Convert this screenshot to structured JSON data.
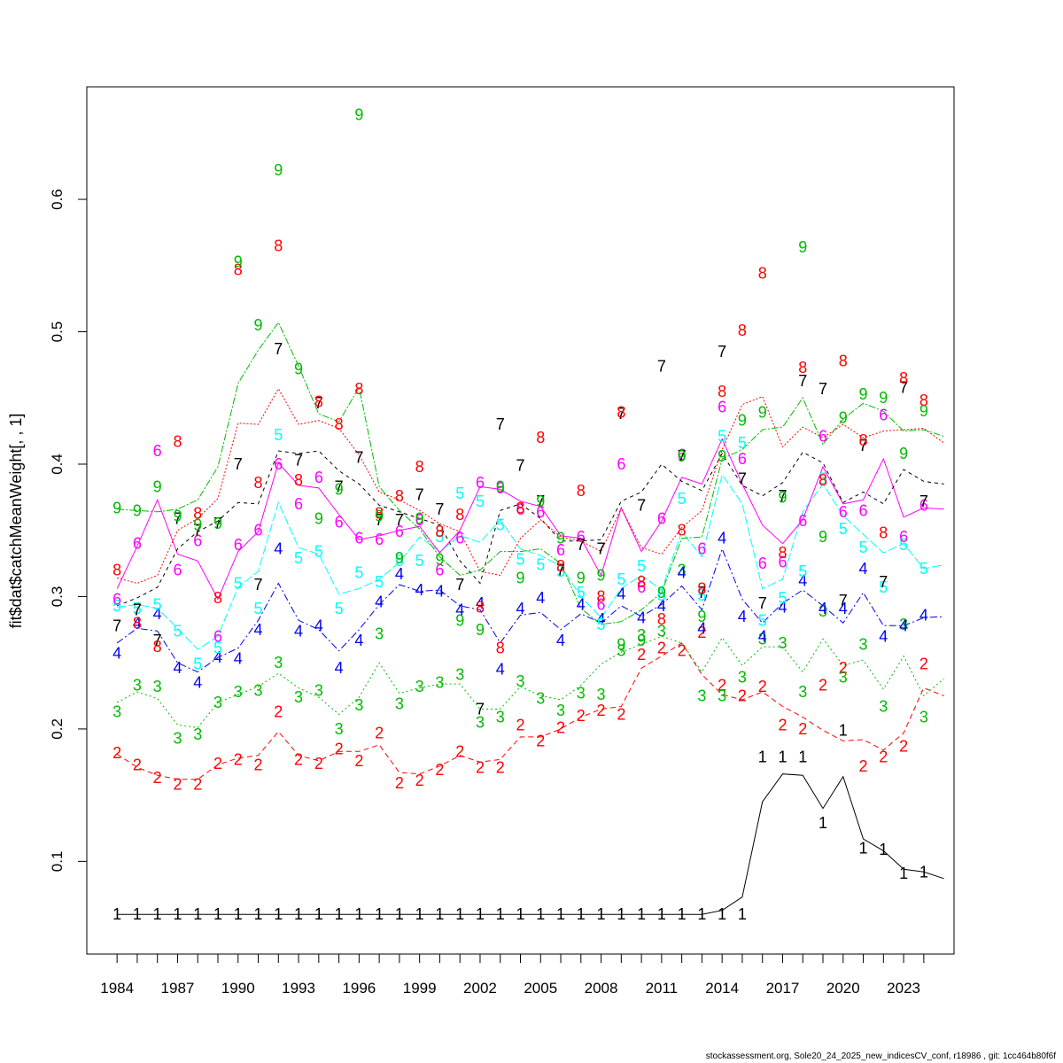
{
  "chart_data": {
    "type": "line",
    "title": "",
    "xlabel": "",
    "ylabel": "fit$dat$catchMeanWeight[, , 1]",
    "xlim": [
      1982.5,
      2025.5
    ],
    "ylim": [
      0.03,
      0.685
    ],
    "x_ticks": [
      1984,
      1987,
      1990,
      1993,
      1996,
      1999,
      2002,
      2005,
      2008,
      2011,
      2014,
      2017,
      2020,
      2023
    ],
    "y_ticks": [
      0.1,
      0.2,
      0.3,
      0.4,
      0.5,
      0.6
    ],
    "grid": false,
    "legend": "none",
    "x": [
      1984,
      1985,
      1986,
      1987,
      1988,
      1989,
      1990,
      1991,
      1992,
      1993,
      1994,
      1995,
      1996,
      1997,
      1998,
      1999,
      2000,
      2001,
      2002,
      2003,
      2004,
      2005,
      2006,
      2007,
      2008,
      2009,
      2010,
      2011,
      2012,
      2013,
      2014,
      2015,
      2016,
      2017,
      2018,
      2019,
      2020,
      2021,
      2022,
      2023,
      2024
    ],
    "fit_x": [
      1984,
      1985,
      1986,
      1987,
      1988,
      1989,
      1990,
      1991,
      1992,
      1993,
      1994,
      1995,
      1996,
      1997,
      1998,
      1999,
      2000,
      2001,
      2002,
      2003,
      2004,
      2005,
      2006,
      2007,
      2008,
      2009,
      2010,
      2011,
      2012,
      2013,
      2014,
      2015,
      2016,
      2017,
      2018,
      2019,
      2020,
      2021,
      2022,
      2023,
      2024,
      2025
    ],
    "series": [
      {
        "label": "1",
        "color": "#000000",
        "dash": "",
        "values": [
          0.06,
          0.06,
          0.06,
          0.06,
          0.06,
          0.06,
          0.06,
          0.06,
          0.06,
          0.06,
          0.06,
          0.06,
          0.06,
          0.06,
          0.06,
          0.06,
          0.06,
          0.06,
          0.06,
          0.06,
          0.06,
          0.06,
          0.06,
          0.06,
          0.06,
          0.06,
          0.06,
          0.06,
          0.06,
          0.06,
          0.06,
          0.06,
          0.179,
          0.179,
          0.179,
          0.129,
          0.199,
          0.11,
          0.109,
          0.091,
          0.092
        ],
        "fit": [
          0.06,
          0.06,
          0.06,
          0.06,
          0.06,
          0.06,
          0.06,
          0.06,
          0.06,
          0.06,
          0.06,
          0.06,
          0.06,
          0.06,
          0.06,
          0.06,
          0.06,
          0.06,
          0.06,
          0.06,
          0.06,
          0.06,
          0.06,
          0.06,
          0.06,
          0.06,
          0.06,
          0.06,
          0.06,
          0.06,
          0.063,
          0.073,
          0.145,
          0.166,
          0.165,
          0.14,
          0.164,
          0.117,
          0.108,
          0.094,
          0.092,
          0.087
        ]
      },
      {
        "label": "2",
        "color": "#ff0000",
        "dash": "6,4",
        "values": [
          0.182,
          0.173,
          0.163,
          0.158,
          0.158,
          0.174,
          0.177,
          0.173,
          0.213,
          0.177,
          0.174,
          0.185,
          0.176,
          0.197,
          0.159,
          0.161,
          0.169,
          0.183,
          0.171,
          0.171,
          0.203,
          0.191,
          0.201,
          0.21,
          0.214,
          0.211,
          0.256,
          0.261,
          0.259,
          0.273,
          0.233,
          0.225,
          0.232,
          0.203,
          0.2,
          0.233,
          0.246,
          0.172,
          0.179,
          0.187,
          0.249
        ],
        "fit": [
          0.181,
          0.171,
          0.165,
          0.162,
          0.162,
          0.173,
          0.178,
          0.18,
          0.198,
          0.18,
          0.176,
          0.183,
          0.183,
          0.188,
          0.167,
          0.166,
          0.172,
          0.18,
          0.175,
          0.177,
          0.194,
          0.194,
          0.2,
          0.209,
          0.215,
          0.217,
          0.246,
          0.255,
          0.265,
          0.241,
          0.226,
          0.222,
          0.228,
          0.217,
          0.209,
          0.199,
          0.191,
          0.192,
          0.184,
          0.197,
          0.231,
          0.225
        ]
      },
      {
        "label": "3",
        "color": "#00bb00",
        "dash": "2,3",
        "values": [
          0.213,
          0.233,
          0.232,
          0.193,
          0.196,
          0.22,
          0.228,
          0.229,
          0.25,
          0.224,
          0.229,
          0.2,
          0.218,
          0.272,
          0.219,
          0.232,
          0.235,
          0.241,
          0.205,
          0.209,
          0.236,
          0.223,
          0.214,
          0.227,
          0.226,
          0.259,
          0.271,
          0.274,
          0.32,
          0.225,
          0.225,
          0.239,
          0.268,
          0.265,
          0.228,
          0.289,
          0.239,
          0.264,
          0.217,
          0.279,
          0.209
        ],
        "fit": [
          0.22,
          0.228,
          0.223,
          0.203,
          0.201,
          0.22,
          0.226,
          0.232,
          0.242,
          0.231,
          0.224,
          0.211,
          0.224,
          0.25,
          0.227,
          0.231,
          0.234,
          0.234,
          0.215,
          0.215,
          0.232,
          0.225,
          0.222,
          0.233,
          0.249,
          0.258,
          0.264,
          0.27,
          0.265,
          0.243,
          0.269,
          0.248,
          0.262,
          0.262,
          0.243,
          0.268,
          0.248,
          0.252,
          0.23,
          0.255,
          0.225,
          0.238
        ]
      },
      {
        "label": "4",
        "color": "#0000ee",
        "dash": "8,3,2,3",
        "values": [
          0.257,
          0.28,
          0.287,
          0.246,
          0.235,
          0.254,
          0.253,
          0.275,
          0.336,
          0.274,
          0.278,
          0.246,
          0.267,
          0.296,
          0.317,
          0.305,
          0.304,
          0.29,
          0.295,
          0.245,
          0.291,
          0.299,
          0.267,
          0.294,
          0.283,
          0.302,
          0.284,
          0.293,
          0.318,
          0.276,
          0.344,
          0.285,
          0.27,
          0.292,
          0.312,
          0.291,
          0.291,
          0.321,
          0.27,
          0.278,
          0.286
        ],
        "fit": [
          0.265,
          0.276,
          0.274,
          0.25,
          0.243,
          0.254,
          0.261,
          0.282,
          0.31,
          0.282,
          0.275,
          0.259,
          0.275,
          0.294,
          0.309,
          0.304,
          0.305,
          0.293,
          0.29,
          0.265,
          0.286,
          0.288,
          0.275,
          0.287,
          0.28,
          0.293,
          0.285,
          0.294,
          0.308,
          0.29,
          0.336,
          0.298,
          0.28,
          0.295,
          0.305,
          0.293,
          0.28,
          0.303,
          0.278,
          0.278,
          0.284,
          0.285
        ]
      },
      {
        "label": "5",
        "color": "#00ffff",
        "dash": "10,3",
        "values": [
          0.293,
          0.291,
          0.294,
          0.274,
          0.249,
          0.261,
          0.31,
          0.291,
          0.422,
          0.329,
          0.334,
          0.291,
          0.318,
          0.311,
          0.327,
          0.327,
          0.345,
          0.378,
          0.372,
          0.354,
          0.328,
          0.324,
          0.319,
          0.303,
          0.279,
          0.313,
          0.323,
          0.301,
          0.374,
          0.301,
          0.421,
          0.416,
          0.282,
          0.299,
          0.319,
          0.389,
          0.351,
          0.337,
          0.307,
          0.339,
          0.321
        ],
        "fit": [
          0.292,
          0.294,
          0.291,
          0.276,
          0.26,
          0.27,
          0.307,
          0.319,
          0.371,
          0.337,
          0.332,
          0.302,
          0.306,
          0.313,
          0.326,
          0.345,
          0.334,
          0.346,
          0.341,
          0.358,
          0.336,
          0.331,
          0.323,
          0.3,
          0.284,
          0.306,
          0.316,
          0.305,
          0.349,
          0.33,
          0.392,
          0.37,
          0.306,
          0.313,
          0.364,
          0.385,
          0.361,
          0.347,
          0.333,
          0.34,
          0.321,
          0.324
        ]
      },
      {
        "label": "6",
        "color": "#ff00ff",
        "dash": "",
        "values": [
          0.298,
          0.34,
          0.41,
          0.32,
          0.342,
          0.27,
          0.339,
          0.35,
          0.4,
          0.37,
          0.39,
          0.356,
          0.344,
          0.343,
          0.349,
          0.358,
          0.32,
          0.344,
          0.386,
          0.382,
          0.366,
          0.364,
          0.335,
          0.345,
          0.294,
          0.4,
          0.307,
          0.359,
          0.407,
          0.336,
          0.443,
          0.404,
          0.325,
          0.326,
          0.357,
          0.421,
          0.364,
          0.365,
          0.437,
          0.345,
          0.369
        ],
        "fit": [
          0.306,
          0.338,
          0.373,
          0.332,
          0.327,
          0.298,
          0.334,
          0.349,
          0.401,
          0.384,
          0.382,
          0.362,
          0.343,
          0.346,
          0.35,
          0.353,
          0.333,
          0.35,
          0.383,
          0.381,
          0.372,
          0.368,
          0.346,
          0.344,
          0.316,
          0.367,
          0.334,
          0.357,
          0.39,
          0.385,
          0.419,
          0.385,
          0.354,
          0.34,
          0.358,
          0.398,
          0.37,
          0.373,
          0.404,
          0.36,
          0.367,
          0.366
        ]
      },
      {
        "label": "7",
        "color": "#000000",
        "dash": "4,4",
        "values": [
          0.278,
          0.29,
          0.267,
          0.359,
          0.35,
          0.355,
          0.4,
          0.309,
          0.487,
          0.403,
          0.446,
          0.383,
          0.405,
          0.358,
          0.358,
          0.377,
          0.366,
          0.309,
          0.215,
          0.43,
          0.399,
          0.372,
          0.32,
          0.339,
          0.336,
          0.438,
          0.369,
          0.474,
          0.406,
          0.303,
          0.485,
          0.389,
          0.295,
          0.376,
          0.463,
          0.457,
          0.297,
          0.414,
          0.311,
          0.458,
          0.372
        ],
        "fit": [
          0.293,
          0.299,
          0.307,
          0.336,
          0.349,
          0.357,
          0.371,
          0.37,
          0.41,
          0.408,
          0.41,
          0.395,
          0.385,
          0.369,
          0.364,
          0.359,
          0.354,
          0.327,
          0.31,
          0.365,
          0.37,
          0.359,
          0.342,
          0.342,
          0.343,
          0.372,
          0.379,
          0.4,
          0.387,
          0.38,
          0.408,
          0.384,
          0.376,
          0.386,
          0.409,
          0.401,
          0.371,
          0.379,
          0.37,
          0.396,
          0.387,
          0.385
        ]
      },
      {
        "label": "8",
        "color": "#ff0000",
        "dash": "2,2",
        "values": [
          0.32,
          0.28,
          0.262,
          0.417,
          0.363,
          0.299,
          0.547,
          0.386,
          0.565,
          0.388,
          0.447,
          0.43,
          0.457,
          0.363,
          0.376,
          0.398,
          0.349,
          0.362,
          0.292,
          0.261,
          0.367,
          0.42,
          0.323,
          0.38,
          0.3,
          0.439,
          0.311,
          0.283,
          0.35,
          0.306,
          0.455,
          0.501,
          0.544,
          0.333,
          0.473,
          0.388,
          0.478,
          0.418,
          0.348,
          0.465,
          0.448
        ],
        "fit": [
          0.314,
          0.31,
          0.316,
          0.35,
          0.359,
          0.374,
          0.431,
          0.43,
          0.457,
          0.43,
          0.433,
          0.427,
          0.407,
          0.379,
          0.373,
          0.365,
          0.355,
          0.349,
          0.319,
          0.316,
          0.344,
          0.358,
          0.345,
          0.342,
          0.334,
          0.367,
          0.337,
          0.332,
          0.352,
          0.365,
          0.411,
          0.445,
          0.451,
          0.413,
          0.428,
          0.42,
          0.43,
          0.42,
          0.425,
          0.426,
          0.427,
          0.416
        ]
      },
      {
        "label": "9",
        "color": "#00bb00",
        "dash": "8,2,2,2",
        "values": [
          0.367,
          0.365,
          0.383,
          0.361,
          0.354,
          0.355,
          0.553,
          0.505,
          0.622,
          0.472,
          0.359,
          0.381,
          0.664,
          0.361,
          0.329,
          0.359,
          0.328,
          0.282,
          0.275,
          0.383,
          0.314,
          0.372,
          0.344,
          0.314,
          0.316,
          0.264,
          0.267,
          0.303,
          0.406,
          0.285,
          0.406,
          0.433,
          0.439,
          0.375,
          0.564,
          0.345,
          0.435,
          0.453,
          0.45,
          0.408,
          0.44
        ],
        "fit": [
          0.366,
          0.365,
          0.364,
          0.366,
          0.373,
          0.398,
          0.461,
          0.486,
          0.507,
          0.474,
          0.438,
          0.432,
          0.458,
          0.383,
          0.365,
          0.351,
          0.33,
          0.316,
          0.32,
          0.334,
          0.334,
          0.336,
          0.325,
          0.291,
          0.279,
          0.281,
          0.29,
          0.303,
          0.344,
          0.345,
          0.404,
          0.411,
          0.426,
          0.428,
          0.45,
          0.415,
          0.434,
          0.446,
          0.44,
          0.425,
          0.426,
          0.421
        ]
      }
    ]
  },
  "footer": "stockassessment.org, Sole20_24_2025_new_indicesCV_conf, r18986 , git: 1cc464b80f6f"
}
